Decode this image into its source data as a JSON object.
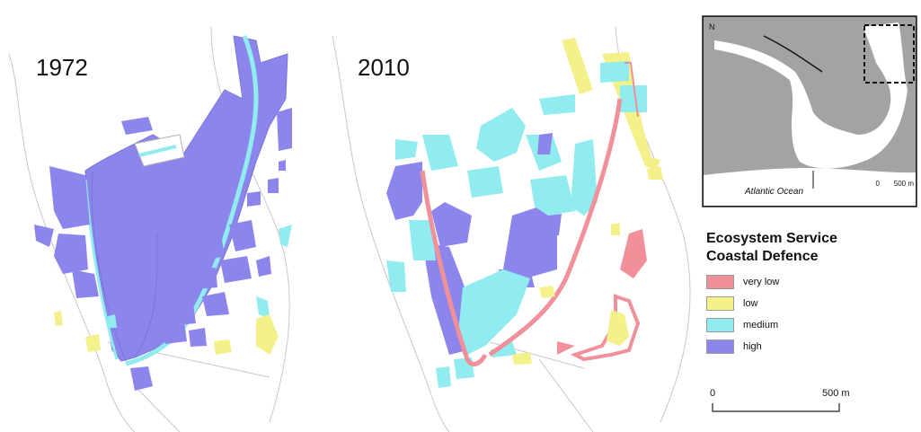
{
  "maps": [
    {
      "year": "1972"
    },
    {
      "year": "2010"
    }
  ],
  "inset": {
    "ocean_label": "Atlantic Ocean",
    "scale_start": "0",
    "scale_end": "500 m",
    "north_label": "N"
  },
  "legend": {
    "title_line1": "Ecosystem Service",
    "title_line2": "Coastal Defence",
    "items": [
      {
        "label": "very low",
        "color": "#f0909a"
      },
      {
        "label": "low",
        "color": "#f4f08a"
      },
      {
        "label": "medium",
        "color": "#90ecee"
      },
      {
        "label": "high",
        "color": "#8c86ec"
      }
    ]
  },
  "scale_bar": {
    "start": "0",
    "end": "500 m"
  },
  "colors": {
    "very_low": "#f0909a",
    "low": "#f4f08a",
    "medium": "#90ecee",
    "high": "#8c86ec",
    "land_gray": "#a3a3a3",
    "outline": "#b5b5b5"
  }
}
